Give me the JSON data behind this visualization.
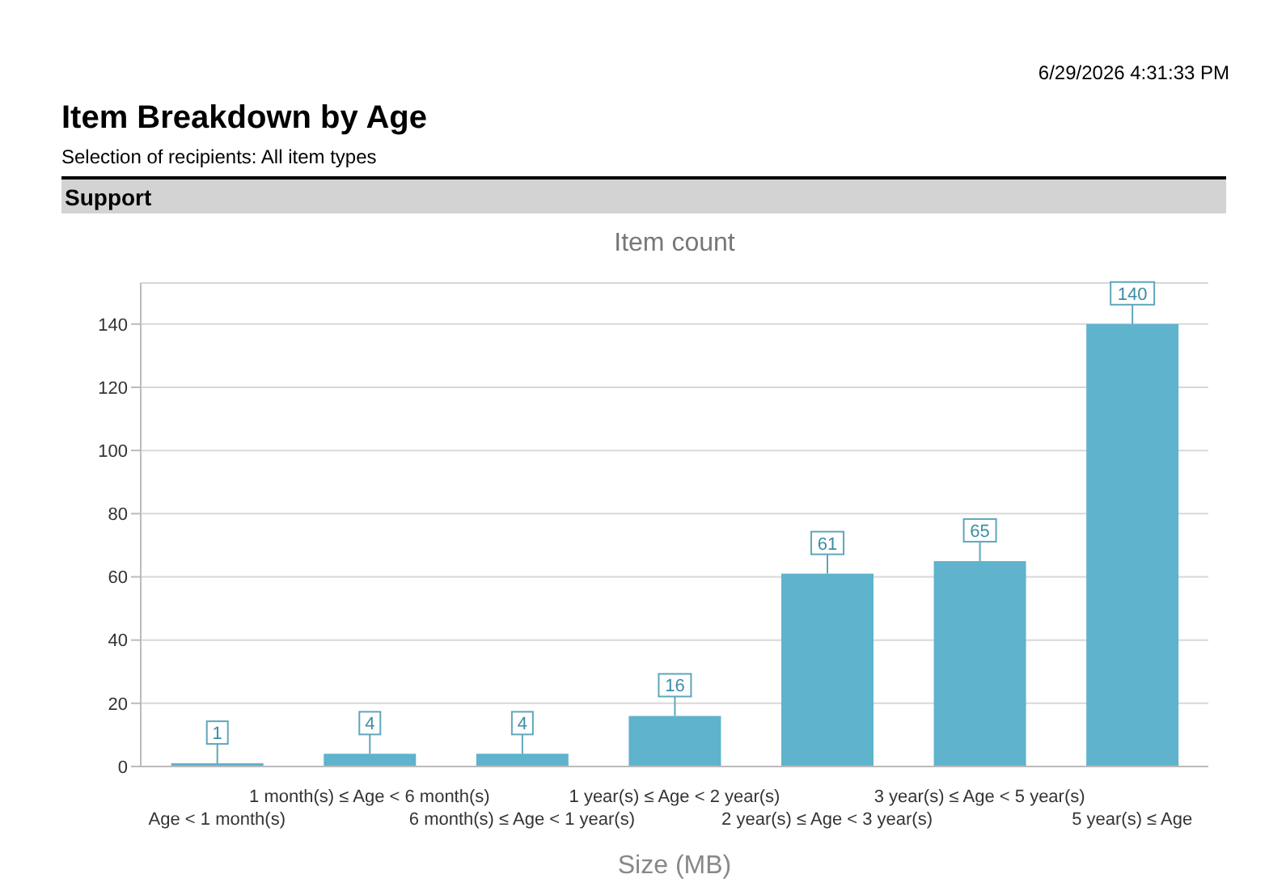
{
  "chart_data": {
    "type": "bar",
    "title": "Item Breakdown by Age",
    "subtitle": "Selection of recipients: All item types",
    "annotations": [
      "6/29/2026 4:31:33 PM",
      "Support",
      "Item count"
    ],
    "categories": [
      "Age < 1 month(s)",
      "1 month(s) ≤ Age < 6 month(s)",
      "6 month(s) ≤ Age < 1 year(s)",
      "1 year(s) ≤ Age < 2 year(s)",
      "2 year(s) ≤ Age < 3 year(s)",
      "3 year(s) ≤ Age < 5 year(s)",
      "5 year(s) ≤ Age"
    ],
    "values": [
      1,
      4,
      4,
      16,
      61,
      65,
      140
    ],
    "color": "#5fb3cc",
    "xlabel": "Size (MB)",
    "ylim": [
      0,
      153
    ],
    "yticks": [
      0,
      20,
      40,
      60,
      80,
      100,
      120,
      140
    ],
    "grid": "y",
    "data_labels": true
  }
}
